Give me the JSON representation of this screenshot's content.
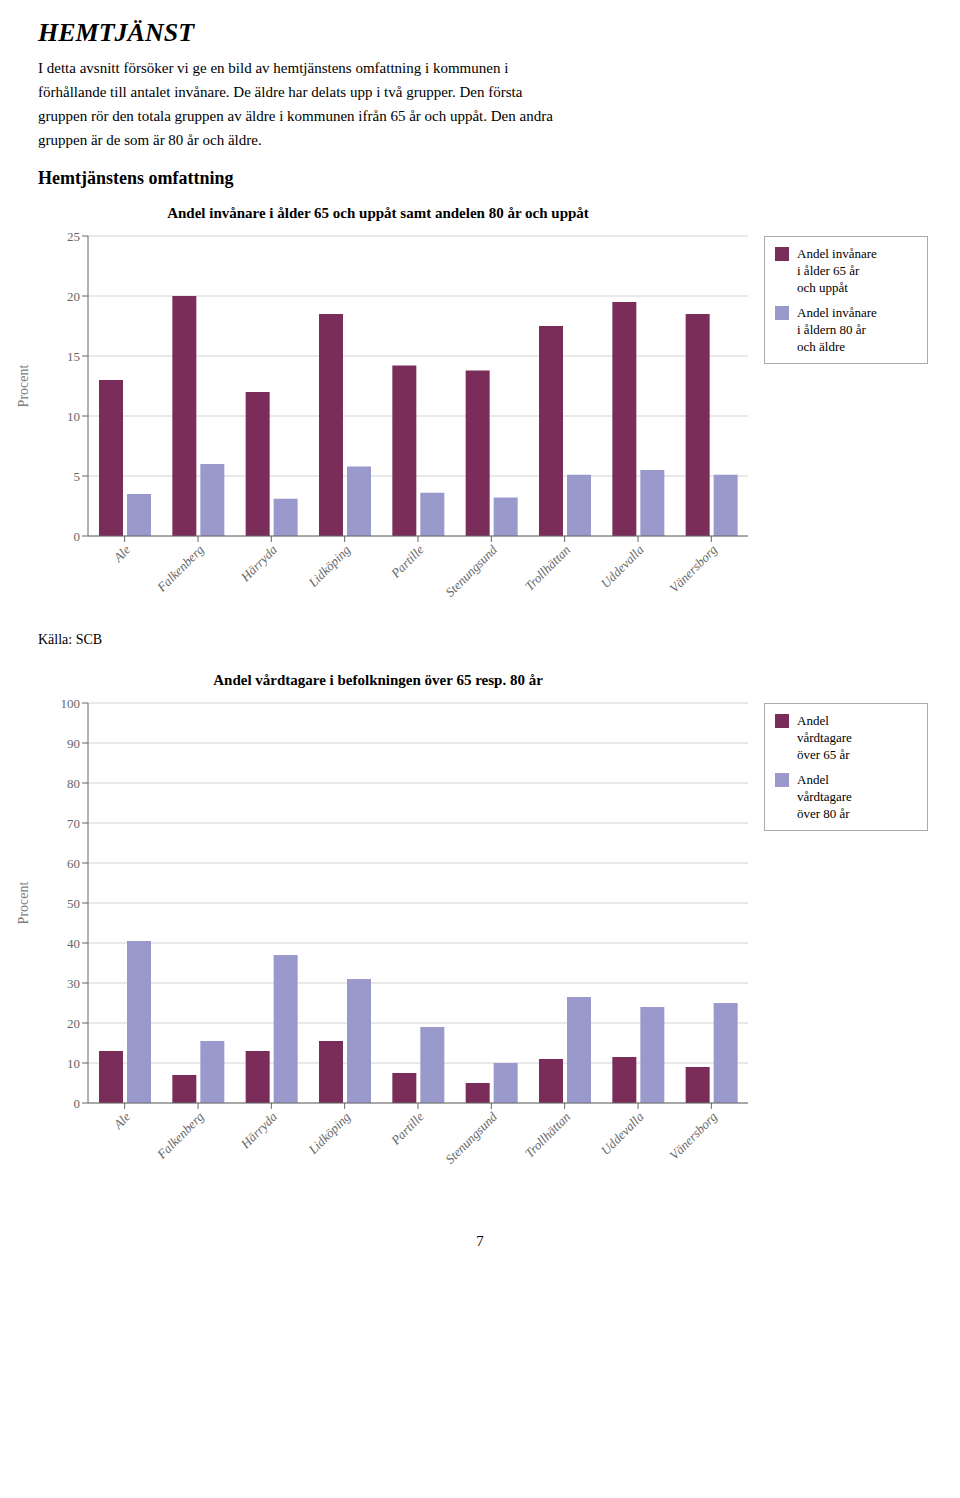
{
  "title": "HEMTJÄNST",
  "annotations": [
    "I detta avsnitt försöker vi ge en bild av hemtjänstens omfattning i kommunen i\nförhållande till antalet invånare. De äldre har delats upp i två grupper. Den första\ngruppen rör den totala gruppen av äldre i kommunen ifrån 65 år och uppåt. Den andra\ngruppen är de som är 80 år och äldre.",
    "Hemtjänstens omfattning",
    "Källa: SCB",
    "7"
  ],
  "chart_data": [
    {
      "type": "bar",
      "title": "Andel invånare i ålder 65 och uppåt samt andelen 80 år och uppåt",
      "y_label": "Procent",
      "categories": [
        "Ale",
        "Falkenberg",
        "Härryda",
        "Lidköping",
        "Partille",
        "Stenungsund",
        "Trollhättan",
        "Uddevalla",
        "Vänersborg"
      ],
      "series": [
        {
          "name": "Andel invånare\ni ålder 65 år\noch uppåt",
          "color": "#7B2D5A",
          "values": [
            13.0,
            20.0,
            12.0,
            18.5,
            14.2,
            13.8,
            17.5,
            19.5,
            18.5
          ]
        },
        {
          "name": "Andel invånare\ni åldern 80 år\noch äldre",
          "color": "#9999CC",
          "values": [
            3.5,
            6.0,
            3.1,
            5.8,
            3.6,
            3.2,
            5.1,
            5.5,
            5.1
          ]
        }
      ],
      "ylim": [
        0,
        25
      ],
      "yticks": [
        0,
        5,
        10,
        15,
        20,
        25
      ],
      "grid": true,
      "legend": "right"
    },
    {
      "type": "bar",
      "title": "Andel vårdtagare i befolkningen över 65 resp. 80 år",
      "y_label": "Procent",
      "categories": [
        "Ale",
        "Falkenberg",
        "Härryda",
        "Lidköping",
        "Partille",
        "Stenungsund",
        "Trollhättan",
        "Uddevalla",
        "Vänersborg"
      ],
      "series": [
        {
          "name": "Andel\nvårdtagare\növer 65 år",
          "color": "#7B2D5A",
          "values": [
            13.0,
            7.0,
            13.0,
            15.5,
            7.5,
            5.0,
            11.0,
            11.5,
            9.0
          ]
        },
        {
          "name": "Andel\nvårdtagare\növer 80 år",
          "color": "#9999CC",
          "values": [
            40.5,
            15.5,
            37.0,
            31.0,
            19.0,
            10.0,
            26.5,
            24.0,
            25.0
          ]
        }
      ],
      "ylim": [
        0,
        100
      ],
      "yticks": [
        0,
        10,
        20,
        30,
        40,
        50,
        60,
        70,
        80,
        90,
        100
      ],
      "grid": true,
      "legend": "right"
    }
  ]
}
